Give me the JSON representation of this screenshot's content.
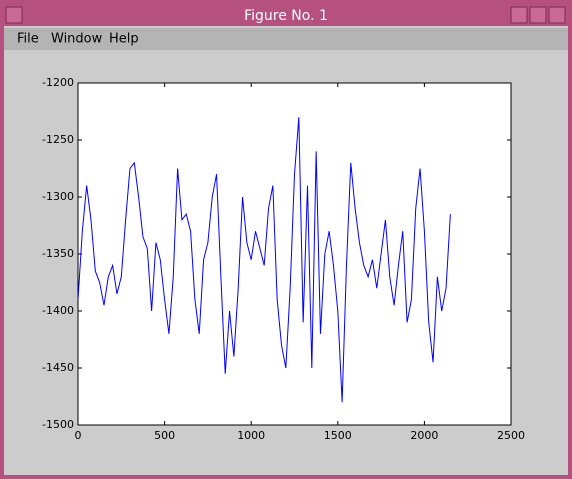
{
  "window": {
    "title": "Figure No. 1",
    "menu": [
      "File",
      "Window",
      "Help"
    ]
  },
  "chart_data": {
    "type": "line",
    "x": [
      0,
      25,
      50,
      75,
      100,
      125,
      150,
      175,
      200,
      225,
      250,
      275,
      300,
      325,
      350,
      375,
      400,
      425,
      450,
      475,
      500,
      525,
      550,
      575,
      600,
      625,
      650,
      675,
      700,
      725,
      750,
      775,
      800,
      825,
      850,
      875,
      900,
      925,
      950,
      975,
      1000,
      1025,
      1050,
      1075,
      1100,
      1125,
      1150,
      1175,
      1200,
      1225,
      1250,
      1275,
      1300,
      1325,
      1350,
      1375,
      1400,
      1425,
      1450,
      1475,
      1500,
      1525,
      1550,
      1575,
      1600,
      1625,
      1650,
      1675,
      1700,
      1725,
      1750,
      1775,
      1800,
      1825,
      1850,
      1875,
      1900,
      1925,
      1950,
      1975,
      2000,
      2025,
      2050,
      2075,
      2100,
      2125,
      2150
    ],
    "series": [
      {
        "color": "#0000ff",
        "values": [
          -1390,
          -1330,
          -1290,
          -1320,
          -1365,
          -1375,
          -1395,
          -1370,
          -1360,
          -1385,
          -1370,
          -1320,
          -1275,
          -1270,
          -1300,
          -1335,
          -1345,
          -1400,
          -1340,
          -1355,
          -1390,
          -1420,
          -1370,
          -1275,
          -1320,
          -1315,
          -1330,
          -1390,
          -1420,
          -1355,
          -1340,
          -1300,
          -1280,
          -1370,
          -1455,
          -1400,
          -1440,
          -1380,
          -1300,
          -1340,
          -1355,
          -1330,
          -1345,
          -1360,
          -1310,
          -1290,
          -1390,
          -1430,
          -1450,
          -1380,
          -1280,
          -1230,
          -1410,
          -1290,
          -1450,
          -1260,
          -1420,
          -1350,
          -1330,
          -1360,
          -1400,
          -1480,
          -1360,
          -1270,
          -1310,
          -1340,
          -1360,
          -1370,
          -1355,
          -1380,
          -1350,
          -1320,
          -1370,
          -1395,
          -1360,
          -1330,
          -1410,
          -1390,
          -1310,
          -1275,
          -1330,
          -1410,
          -1445,
          -1370,
          -1400,
          -1380,
          -1315
        ]
      }
    ],
    "xlim": [
      0,
      2500
    ],
    "xticks": [
      0,
      500,
      1000,
      1500,
      2000,
      2500
    ],
    "ylim": [
      -1500,
      -1200
    ],
    "yticks": [
      -1500,
      -1450,
      -1400,
      -1350,
      -1300,
      -1250,
      -1200
    ]
  }
}
